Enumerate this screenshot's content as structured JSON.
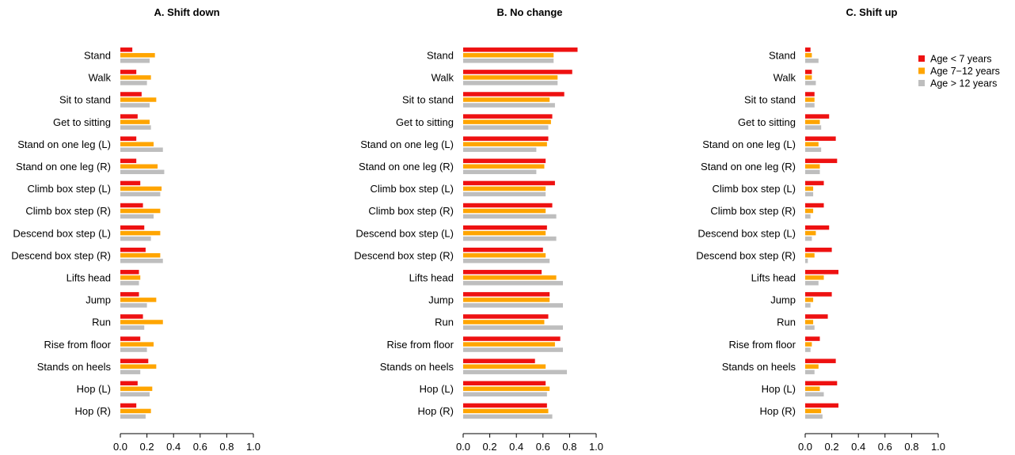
{
  "chart_data": {
    "type": "bar",
    "orientation": "horizontal",
    "xlim": [
      0,
      1
    ],
    "xticks": [
      "0.0",
      "0.2",
      "0.4",
      "0.6",
      "0.8",
      "1.0"
    ],
    "grid": false,
    "legend_position": "top-right",
    "categories": [
      "Stand",
      "Walk",
      "Sit to stand",
      "Get to sitting",
      "Stand on one leg (L)",
      "Stand on one leg (R)",
      "Climb box step (L)",
      "Climb box step (R)",
      "Descend box step (L)",
      "Descend box step (R)",
      "Lifts head",
      "Jump",
      "Run",
      "Rise from floor",
      "Stands on heels",
      "Hop (L)",
      "Hop (R)"
    ],
    "series_names": [
      "Age < 7 years",
      "Age 7−12 years",
      "Age > 12 years"
    ],
    "colors": [
      "#ee1111",
      "#ffa500",
      "#bebebe"
    ],
    "panels": [
      {
        "title": "A. Shift down",
        "series": [
          {
            "name": "Age < 7 years",
            "values": [
              0.09,
              0.12,
              0.16,
              0.13,
              0.12,
              0.12,
              0.15,
              0.17,
              0.18,
              0.19,
              0.14,
              0.14,
              0.17,
              0.15,
              0.21,
              0.13,
              0.12
            ]
          },
          {
            "name": "Age 7−12 years",
            "values": [
              0.26,
              0.23,
              0.27,
              0.22,
              0.25,
              0.28,
              0.31,
              0.3,
              0.3,
              0.3,
              0.15,
              0.27,
              0.32,
              0.25,
              0.27,
              0.24,
              0.23
            ]
          },
          {
            "name": "Age > 12 years",
            "values": [
              0.22,
              0.2,
              0.22,
              0.23,
              0.32,
              0.33,
              0.3,
              0.25,
              0.23,
              0.32,
              0.14,
              0.2,
              0.18,
              0.2,
              0.15,
              0.22,
              0.19
            ]
          }
        ]
      },
      {
        "title": "B. No change",
        "series": [
          {
            "name": "Age < 7 years",
            "values": [
              0.86,
              0.82,
              0.76,
              0.67,
              0.64,
              0.62,
              0.69,
              0.67,
              0.63,
              0.6,
              0.59,
              0.65,
              0.64,
              0.73,
              0.54,
              0.62,
              0.63
            ]
          },
          {
            "name": "Age 7−12 years",
            "values": [
              0.68,
              0.71,
              0.65,
              0.66,
              0.63,
              0.61,
              0.62,
              0.62,
              0.62,
              0.62,
              0.7,
              0.65,
              0.61,
              0.69,
              0.62,
              0.65,
              0.64
            ]
          },
          {
            "name": "Age > 12 years",
            "values": [
              0.68,
              0.71,
              0.69,
              0.64,
              0.55,
              0.55,
              0.62,
              0.7,
              0.7,
              0.65,
              0.75,
              0.75,
              0.75,
              0.75,
              0.78,
              0.63,
              0.67
            ]
          }
        ]
      },
      {
        "title": "C. Shift up",
        "series": [
          {
            "name": "Age < 7 years",
            "values": [
              0.04,
              0.05,
              0.07,
              0.18,
              0.23,
              0.24,
              0.14,
              0.14,
              0.18,
              0.2,
              0.25,
              0.2,
              0.17,
              0.11,
              0.23,
              0.24,
              0.25
            ]
          },
          {
            "name": "Age 7−12 years",
            "values": [
              0.05,
              0.05,
              0.07,
              0.11,
              0.1,
              0.11,
              0.06,
              0.06,
              0.08,
              0.07,
              0.14,
              0.06,
              0.06,
              0.05,
              0.1,
              0.11,
              0.12
            ]
          },
          {
            "name": "Age > 12 years",
            "values": [
              0.1,
              0.08,
              0.07,
              0.12,
              0.12,
              0.11,
              0.06,
              0.04,
              0.05,
              0.02,
              0.1,
              0.04,
              0.07,
              0.04,
              0.07,
              0.14,
              0.13
            ]
          }
        ]
      }
    ]
  }
}
